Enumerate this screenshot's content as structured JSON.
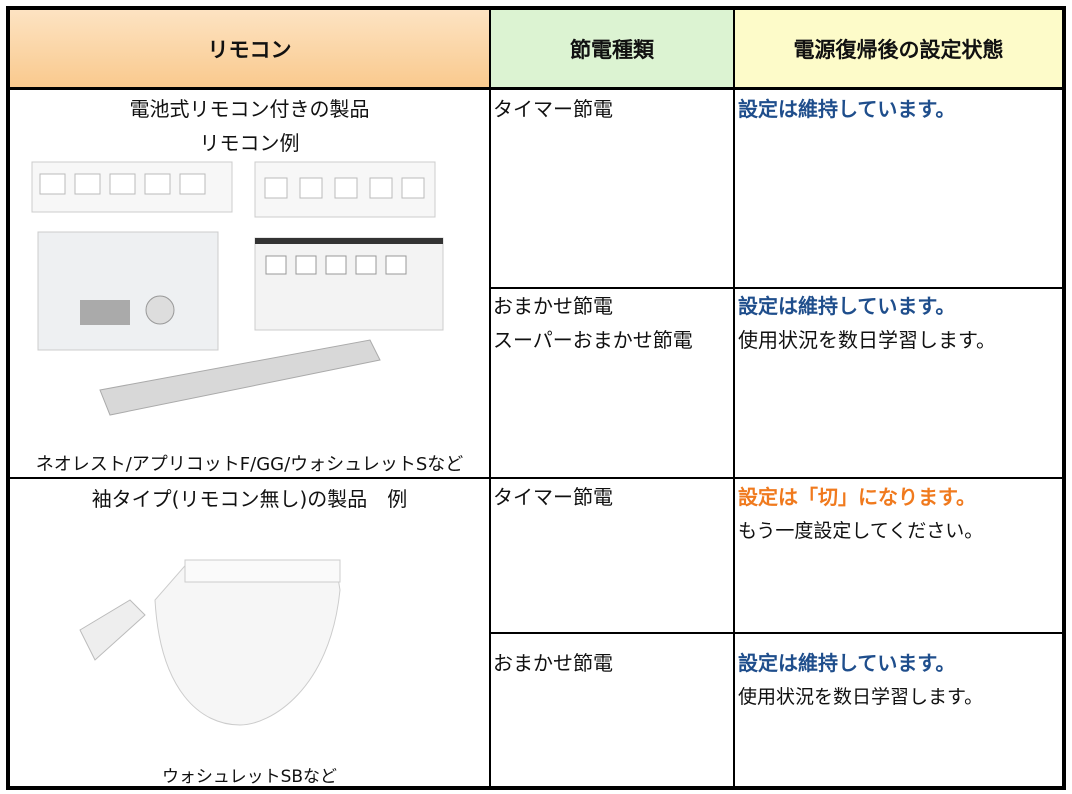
{
  "header": [
    "リモコン",
    "節電種類",
    "電源復帰後の設定状態"
  ],
  "sections": [
    {
      "title": [
        "電池式リモコン付きの製品",
        "リモコン例"
      ],
      "caption": "ネオレスト/アプリコットF/GG/ウォシュレットSなど",
      "entries": [
        {
          "mode": [
            "タイマー節電"
          ],
          "state": [
            "設定は維持しています。"
          ]
        },
        {
          "mode": [
            "おまかせ節電",
            "スーパーおまかせ節電"
          ],
          "state": [
            "設定は維持しています。",
            "使用状況を数日学習します。"
          ]
        }
      ]
    },
    {
      "title": [
        "袖タイプ(リモコン無し)の製品　例"
      ],
      "caption": "ウォシュレットSBなど",
      "entries": [
        {
          "mode": [
            "タイマー節電"
          ],
          "state": [
            "設定は「切」になります。",
            "もう一度設定してください。"
          ]
        },
        {
          "mode": [
            "おまかせ節電"
          ],
          "state": [
            "設定は維持しています。",
            "使用状況を数日学習します。"
          ]
        }
      ]
    }
  ]
}
